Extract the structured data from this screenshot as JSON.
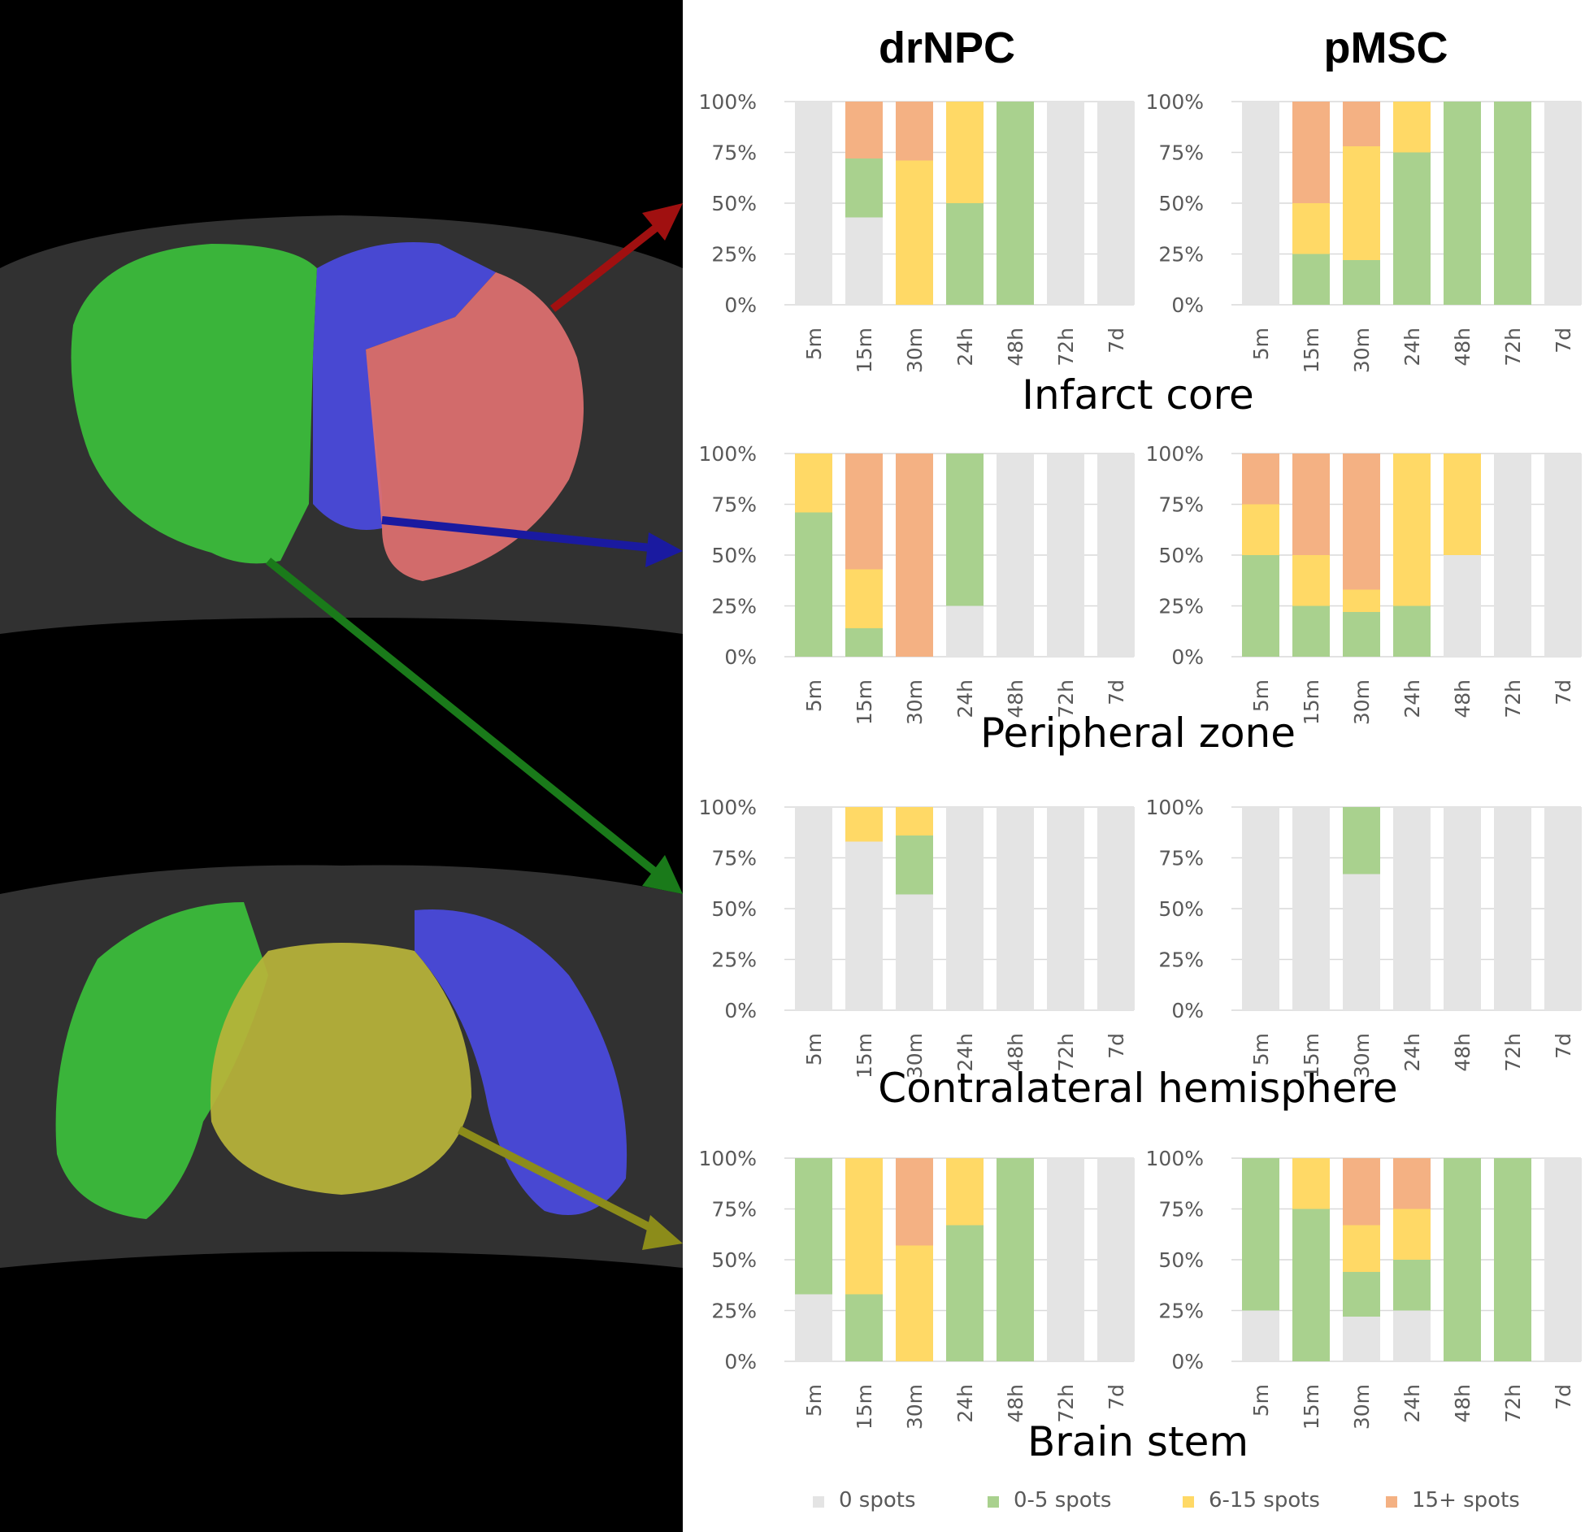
{
  "figure": {
    "column_titles": [
      "drNPC",
      "pMSC"
    ]
  },
  "colors": {
    "0 spots": "#e4e4e4",
    "0-5 spots": "#a9d18e",
    "6-15 spots": "#ffd966",
    "15+ spots": "#f4b183",
    "mri_background": "#000000",
    "roi_green": "#3bbf3b",
    "roi_blue": "#4a4ae0",
    "roi_red": "#e07070",
    "roi_yellow": "#b8b43a",
    "arrow_red": "#a01010",
    "arrow_blue": "#1a1aa0",
    "arrow_green": "#1a7a1a",
    "arrow_yellow": "#8c8c1a"
  },
  "legend": [
    "0 spots",
    "0-5 spots",
    "6-15 spots",
    "15+ spots"
  ],
  "mri_image": {
    "panels": [
      {
        "regions": [
          "contralateral hemisphere (green)",
          "peripheral zone (blue)",
          "infarct core (red)"
        ]
      },
      {
        "regions": [
          "contralateral hemisphere (green)",
          "brain stem (yellow)",
          "peripheral zone (blue)"
        ]
      }
    ]
  },
  "chart_data": [
    {
      "type": "bar",
      "stacked": true,
      "column": "drNPC",
      "region": "Infarct core",
      "categories": [
        "5m",
        "15m",
        "30m",
        "24h",
        "48h",
        "72h",
        "7d"
      ],
      "ylim": [
        0,
        100
      ],
      "yticks": [
        "0%",
        "25%",
        "50%",
        "75%",
        "100%"
      ],
      "series": [
        {
          "name": "0 spots",
          "values": [
            100,
            43,
            0,
            0,
            0,
            100,
            100
          ]
        },
        {
          "name": "0-5 spots",
          "values": [
            0,
            29,
            0,
            50,
            100,
            0,
            0
          ]
        },
        {
          "name": "6-15 spots",
          "values": [
            0,
            0,
            71,
            50,
            0,
            0,
            0
          ]
        },
        {
          "name": "15+ spots",
          "values": [
            0,
            28,
            29,
            0,
            0,
            0,
            0
          ]
        }
      ]
    },
    {
      "type": "bar",
      "stacked": true,
      "column": "pMSC",
      "region": "Infarct core",
      "categories": [
        "5m",
        "15m",
        "30m",
        "24h",
        "48h",
        "72h",
        "7d"
      ],
      "ylim": [
        0,
        100
      ],
      "yticks": [
        "0%",
        "25%",
        "50%",
        "75%",
        "100%"
      ],
      "series": [
        {
          "name": "0 spots",
          "values": [
            100,
            0,
            0,
            0,
            0,
            0,
            100
          ]
        },
        {
          "name": "0-5 spots",
          "values": [
            0,
            25,
            22,
            75,
            100,
            100,
            0
          ]
        },
        {
          "name": "6-15 spots",
          "values": [
            0,
            25,
            56,
            25,
            0,
            0,
            0
          ]
        },
        {
          "name": "15+ spots",
          "values": [
            0,
            50,
            22,
            0,
            0,
            0,
            0
          ]
        }
      ]
    },
    {
      "type": "bar",
      "stacked": true,
      "column": "drNPC",
      "region": "Peripheral zone",
      "categories": [
        "5m",
        "15m",
        "30m",
        "24h",
        "48h",
        "72h",
        "7d"
      ],
      "ylim": [
        0,
        100
      ],
      "yticks": [
        "0%",
        "25%",
        "50%",
        "75%",
        "100%"
      ],
      "series": [
        {
          "name": "0 spots",
          "values": [
            0,
            0,
            0,
            25,
            100,
            100,
            100
          ]
        },
        {
          "name": "0-5 spots",
          "values": [
            71,
            14,
            0,
            75,
            0,
            0,
            0
          ]
        },
        {
          "name": "6-15 spots",
          "values": [
            29,
            29,
            0,
            0,
            0,
            0,
            0
          ]
        },
        {
          "name": "15+ spots",
          "values": [
            0,
            57,
            100,
            0,
            0,
            0,
            0
          ]
        }
      ]
    },
    {
      "type": "bar",
      "stacked": true,
      "column": "pMSC",
      "region": "Peripheral zone",
      "categories": [
        "5m",
        "15m",
        "30m",
        "24h",
        "48h",
        "72h",
        "7d"
      ],
      "ylim": [
        0,
        100
      ],
      "yticks": [
        "0%",
        "25%",
        "50%",
        "75%",
        "100%"
      ],
      "series": [
        {
          "name": "0 spots",
          "values": [
            0,
            0,
            0,
            0,
            50,
            100,
            100
          ]
        },
        {
          "name": "0-5 spots",
          "values": [
            50,
            25,
            22,
            25,
            0,
            0,
            0
          ]
        },
        {
          "name": "6-15 spots",
          "values": [
            25,
            25,
            11,
            75,
            50,
            0,
            0
          ]
        },
        {
          "name": "15+ spots",
          "values": [
            25,
            50,
            67,
            0,
            0,
            0,
            0
          ]
        }
      ]
    },
    {
      "type": "bar",
      "stacked": true,
      "column": "drNPC",
      "region": "Contralateral hemisphere",
      "categories": [
        "5m",
        "15m",
        "30m",
        "24h",
        "48h",
        "72h",
        "7d"
      ],
      "ylim": [
        0,
        100
      ],
      "yticks": [
        "0%",
        "25%",
        "50%",
        "75%",
        "100%"
      ],
      "series": [
        {
          "name": "0 spots",
          "values": [
            100,
            83,
            57,
            100,
            100,
            100,
            100
          ]
        },
        {
          "name": "0-5 spots",
          "values": [
            0,
            0,
            29,
            0,
            0,
            0,
            0
          ]
        },
        {
          "name": "6-15 spots",
          "values": [
            0,
            17,
            14,
            0,
            0,
            0,
            0
          ]
        },
        {
          "name": "15+ spots",
          "values": [
            0,
            0,
            0,
            0,
            0,
            0,
            0
          ]
        }
      ]
    },
    {
      "type": "bar",
      "stacked": true,
      "column": "pMSC",
      "region": "Contralateral hemisphere",
      "categories": [
        "5m",
        "15m",
        "30m",
        "24h",
        "48h",
        "72h",
        "7d"
      ],
      "ylim": [
        0,
        100
      ],
      "yticks": [
        "0%",
        "25%",
        "50%",
        "75%",
        "100%"
      ],
      "series": [
        {
          "name": "0 spots",
          "values": [
            100,
            100,
            67,
            100,
            100,
            100,
            100
          ]
        },
        {
          "name": "0-5 spots",
          "values": [
            0,
            0,
            33,
            0,
            0,
            0,
            0
          ]
        },
        {
          "name": "6-15 spots",
          "values": [
            0,
            0,
            0,
            0,
            0,
            0,
            0
          ]
        },
        {
          "name": "15+ spots",
          "values": [
            0,
            0,
            0,
            0,
            0,
            0,
            0
          ]
        }
      ]
    },
    {
      "type": "bar",
      "stacked": true,
      "column": "drNPC",
      "region": "Brain stem",
      "categories": [
        "5m",
        "15m",
        "30m",
        "24h",
        "48h",
        "72h",
        "7d"
      ],
      "ylim": [
        0,
        100
      ],
      "yticks": [
        "0%",
        "25%",
        "50%",
        "75%",
        "100%"
      ],
      "series": [
        {
          "name": "0 spots",
          "values": [
            33,
            0,
            0,
            0,
            0,
            100,
            100
          ]
        },
        {
          "name": "0-5 spots",
          "values": [
            67,
            33,
            0,
            67,
            100,
            0,
            0
          ]
        },
        {
          "name": "6-15 spots",
          "values": [
            0,
            67,
            57,
            33,
            0,
            0,
            0
          ]
        },
        {
          "name": "15+ spots",
          "values": [
            0,
            0,
            43,
            0,
            0,
            0,
            0
          ]
        }
      ]
    },
    {
      "type": "bar",
      "stacked": true,
      "column": "pMSC",
      "region": "Brain stem",
      "categories": [
        "5m",
        "15m",
        "30m",
        "24h",
        "48h",
        "72h",
        "7d"
      ],
      "ylim": [
        0,
        100
      ],
      "yticks": [
        "0%",
        "25%",
        "50%",
        "75%",
        "100%"
      ],
      "series": [
        {
          "name": "0 spots",
          "values": [
            25,
            0,
            22,
            25,
            0,
            0,
            100
          ]
        },
        {
          "name": "0-5 spots",
          "values": [
            75,
            75,
            22,
            25,
            100,
            100,
            0
          ]
        },
        {
          "name": "6-15 spots",
          "values": [
            0,
            25,
            23,
            25,
            0,
            0,
            0
          ]
        },
        {
          "name": "15+ spots",
          "values": [
            0,
            0,
            33,
            25,
            0,
            0,
            0
          ]
        }
      ]
    }
  ]
}
